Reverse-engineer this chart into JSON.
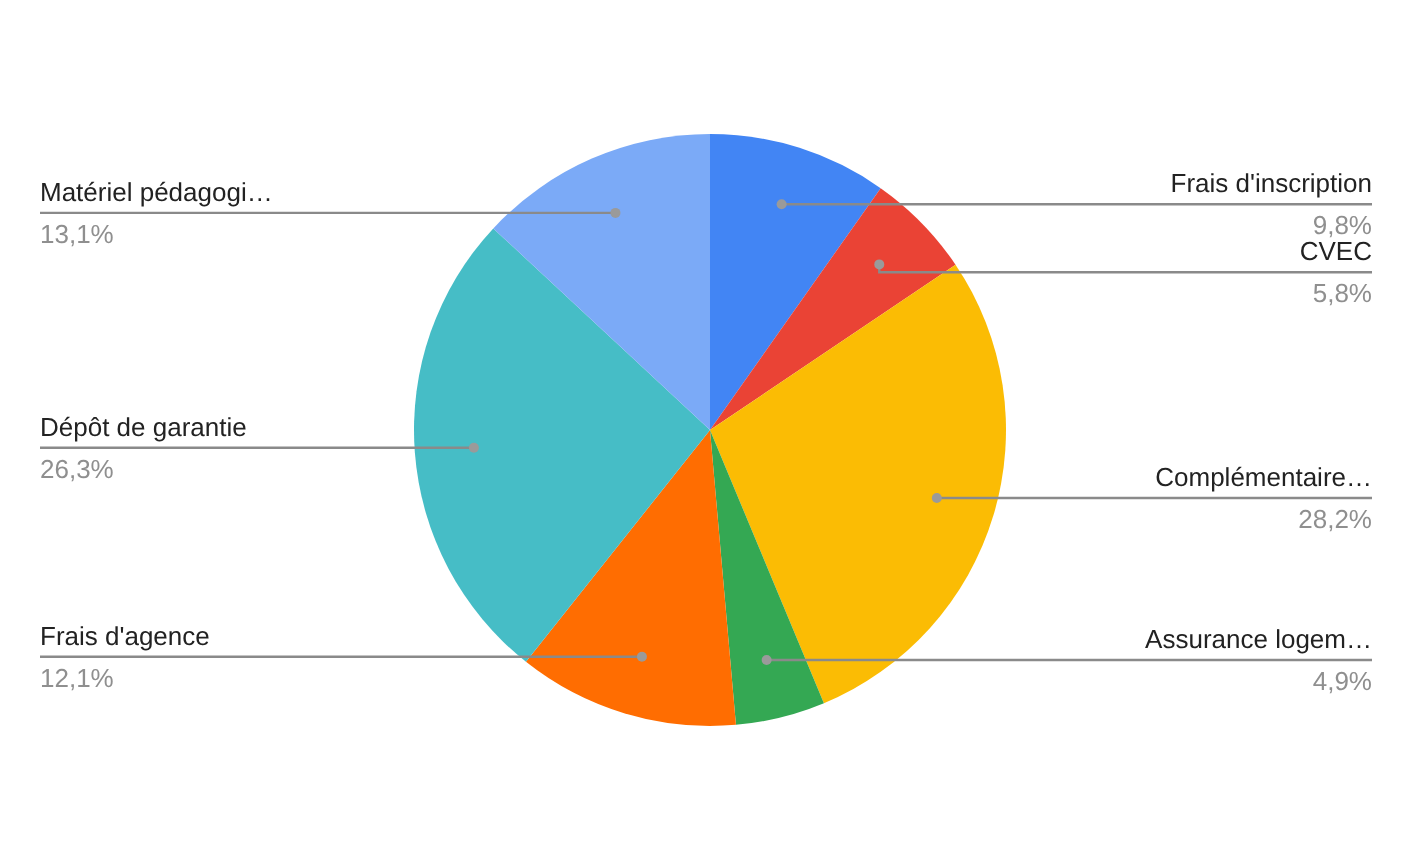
{
  "chart_data": {
    "type": "pie",
    "categories": [
      "Frais d'inscription",
      "CVEC",
      "Complémentaire…",
      "Assurance logem…",
      "Frais d'agence",
      "Dépôt de garantie",
      "Matériel pédagogi…"
    ],
    "values": [
      9.8,
      5.8,
      28.2,
      4.9,
      12.1,
      26.3,
      13.1
    ],
    "colors": [
      "#4285f4",
      "#ea4335",
      "#fbbc04",
      "#34a853",
      "#ff6d01",
      "#46bdc6",
      "#7baaf7"
    ],
    "value_labels": [
      "9,8%",
      "5,8%",
      "28,2%",
      "4,9%",
      "12,1%",
      "26,3%",
      "13,1%"
    ]
  }
}
